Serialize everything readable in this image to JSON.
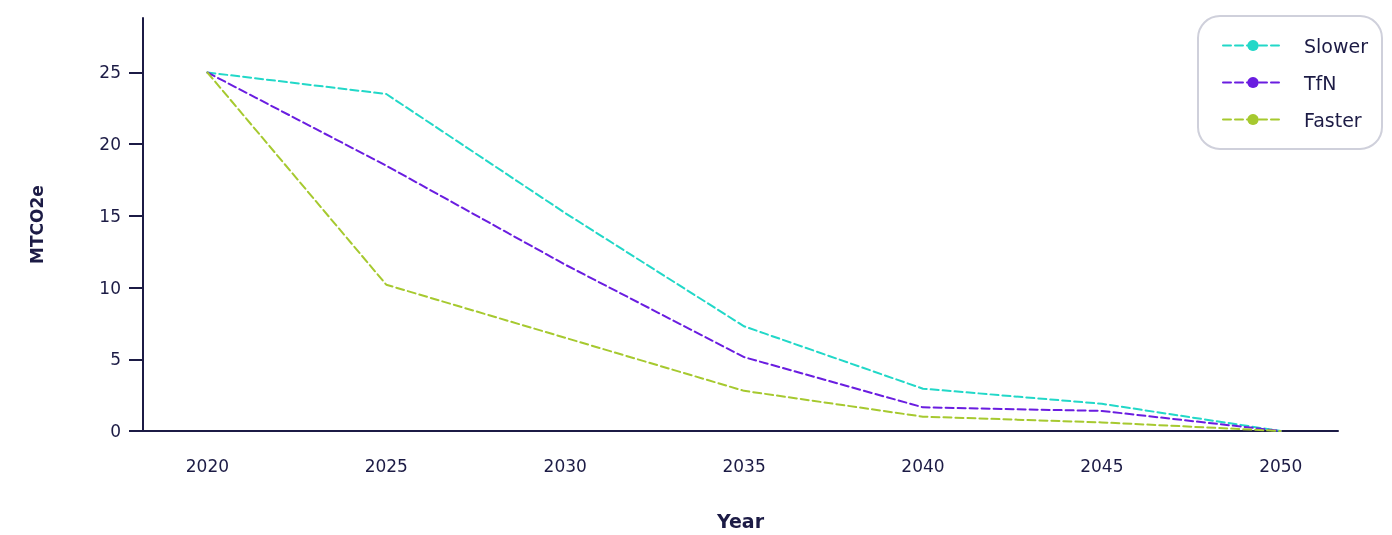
{
  "chart_data": {
    "type": "line",
    "xlabel": "Year",
    "ylabel": "MTCO2e",
    "x": [
      2020,
      2025,
      2030,
      2035,
      2040,
      2045,
      2050
    ],
    "series": [
      {
        "name": "Slower",
        "color": "#22d8c8",
        "values": [
          25,
          23.5,
          15.2,
          7.3,
          2.95,
          1.9,
          0
        ]
      },
      {
        "name": "TfN",
        "color": "#6a1de0",
        "values": [
          25,
          18.5,
          11.6,
          5.15,
          1.65,
          1.4,
          0
        ]
      },
      {
        "name": "Faster",
        "color": "#a6c92f",
        "values": [
          25,
          10.2,
          6.5,
          2.8,
          1.0,
          0.6,
          0
        ]
      }
    ],
    "xlim": [
      2018.2,
      2051.6
    ],
    "xticks": [
      2020,
      2025,
      2030,
      2035,
      2040,
      2045,
      2050
    ],
    "ylim": [
      0,
      28.8
    ],
    "yticks": [
      0,
      5,
      10,
      15,
      20,
      25
    ],
    "grid": false,
    "legend": "top right",
    "marker": "none",
    "line_style": "dashed"
  }
}
